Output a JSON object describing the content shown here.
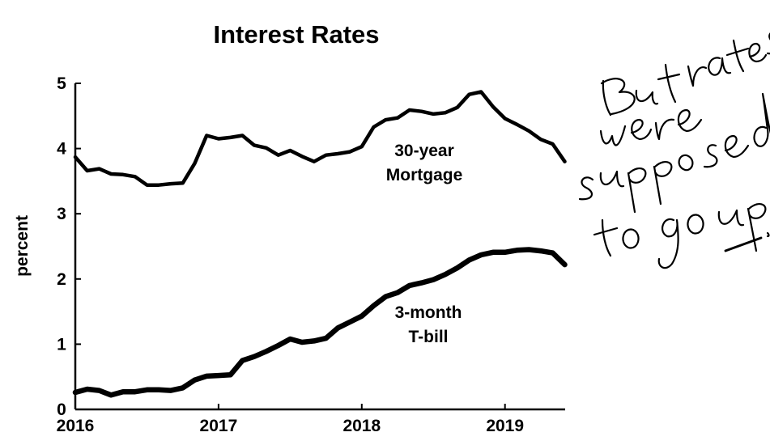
{
  "chart_data": {
    "type": "line",
    "title": "Interest Rates",
    "xlabel": "",
    "ylabel": "percent",
    "xlim": [
      2016.0,
      2019.42
    ],
    "ylim": [
      0,
      5
    ],
    "x_ticks": [
      2016,
      2017,
      2018,
      2019
    ],
    "x_tick_labels": [
      "2016",
      "2017",
      "2018",
      "2019"
    ],
    "y_ticks": [
      0,
      1,
      2,
      3,
      4,
      5
    ],
    "y_tick_labels": [
      "0",
      "1",
      "2",
      "3",
      "4",
      "5"
    ],
    "grid": false,
    "legend": "none",
    "series": [
      {
        "name": "30-year Mortgage",
        "label_lines": [
          "30-year",
          "Mortgage"
        ],
        "line_weight": "thin",
        "x": [
          2016.0,
          2016.083,
          2016.167,
          2016.25,
          2016.333,
          2016.417,
          2016.5,
          2016.583,
          2016.667,
          2016.75,
          2016.833,
          2016.917,
          2017.0,
          2017.083,
          2017.167,
          2017.25,
          2017.333,
          2017.417,
          2017.5,
          2017.583,
          2017.667,
          2017.75,
          2017.833,
          2017.917,
          2018.0,
          2018.083,
          2018.167,
          2018.25,
          2018.333,
          2018.417,
          2018.5,
          2018.583,
          2018.667,
          2018.75,
          2018.833,
          2018.917,
          2019.0,
          2019.083,
          2019.167,
          2019.25,
          2019.333,
          2019.417
        ],
        "values": [
          3.87,
          3.66,
          3.69,
          3.61,
          3.6,
          3.57,
          3.44,
          3.44,
          3.46,
          3.47,
          3.77,
          4.2,
          4.15,
          4.17,
          4.2,
          4.05,
          4.01,
          3.9,
          3.97,
          3.88,
          3.8,
          3.9,
          3.92,
          3.95,
          4.03,
          4.33,
          4.44,
          4.47,
          4.59,
          4.57,
          4.53,
          4.55,
          4.63,
          4.83,
          4.87,
          4.64,
          4.46,
          4.37,
          4.27,
          4.14,
          4.07,
          3.8
        ]
      },
      {
        "name": "3-month T-bill",
        "label_lines": [
          "3-month",
          "T-bill"
        ],
        "line_weight": "thick",
        "x": [
          2016.0,
          2016.083,
          2016.167,
          2016.25,
          2016.333,
          2016.417,
          2016.5,
          2016.583,
          2016.667,
          2016.75,
          2016.833,
          2016.917,
          2017.0,
          2017.083,
          2017.167,
          2017.25,
          2017.333,
          2017.417,
          2017.5,
          2017.583,
          2017.667,
          2017.75,
          2017.833,
          2017.917,
          2018.0,
          2018.083,
          2018.167,
          2018.25,
          2018.333,
          2018.417,
          2018.5,
          2018.583,
          2018.667,
          2018.75,
          2018.833,
          2018.917,
          2019.0,
          2019.083,
          2019.167,
          2019.25,
          2019.333,
          2019.417
        ],
        "values": [
          0.26,
          0.31,
          0.29,
          0.22,
          0.27,
          0.27,
          0.3,
          0.3,
          0.29,
          0.33,
          0.45,
          0.51,
          0.52,
          0.53,
          0.75,
          0.81,
          0.89,
          0.98,
          1.08,
          1.03,
          1.05,
          1.09,
          1.25,
          1.34,
          1.43,
          1.59,
          1.73,
          1.79,
          1.9,
          1.94,
          1.99,
          2.07,
          2.17,
          2.29,
          2.37,
          2.41,
          2.41,
          2.44,
          2.45,
          2.43,
          2.4,
          2.22
        ]
      }
    ],
    "annotation": {
      "text": "But rates were supposed to go up.",
      "style": "handwritten"
    }
  },
  "colors": {
    "background": "#ffffff",
    "ink": "#000000"
  }
}
